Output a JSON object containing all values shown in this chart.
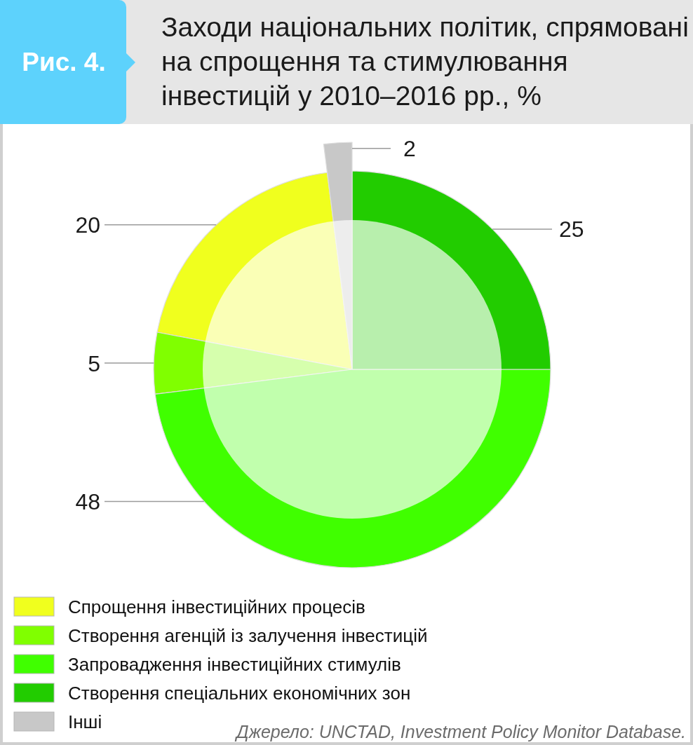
{
  "chart_data": {
    "type": "pie",
    "title": "Заходи національних політик, спрямовані на спрощення та стимулювання інвестицій у 2010–2016 рр., %",
    "categories": [
      "Спрощення інвестиційних процесів",
      "Створення агенцій із залучення інвестицій",
      "Запровадження інвестиційних стимулів",
      "Створення спеціальних економічних зон",
      "Інші"
    ],
    "values": [
      20,
      5,
      48,
      25,
      2
    ],
    "colors": [
      "#f0ff1e",
      "#80ff00",
      "#40ff00",
      "#22cc00",
      "#c8c8c8"
    ],
    "data_labels": true,
    "legend": "bottom left",
    "annotations": [
      "Рис. 4.",
      "Джерело: UNCTAD, Investment Policy Monitor Database."
    ]
  }
}
